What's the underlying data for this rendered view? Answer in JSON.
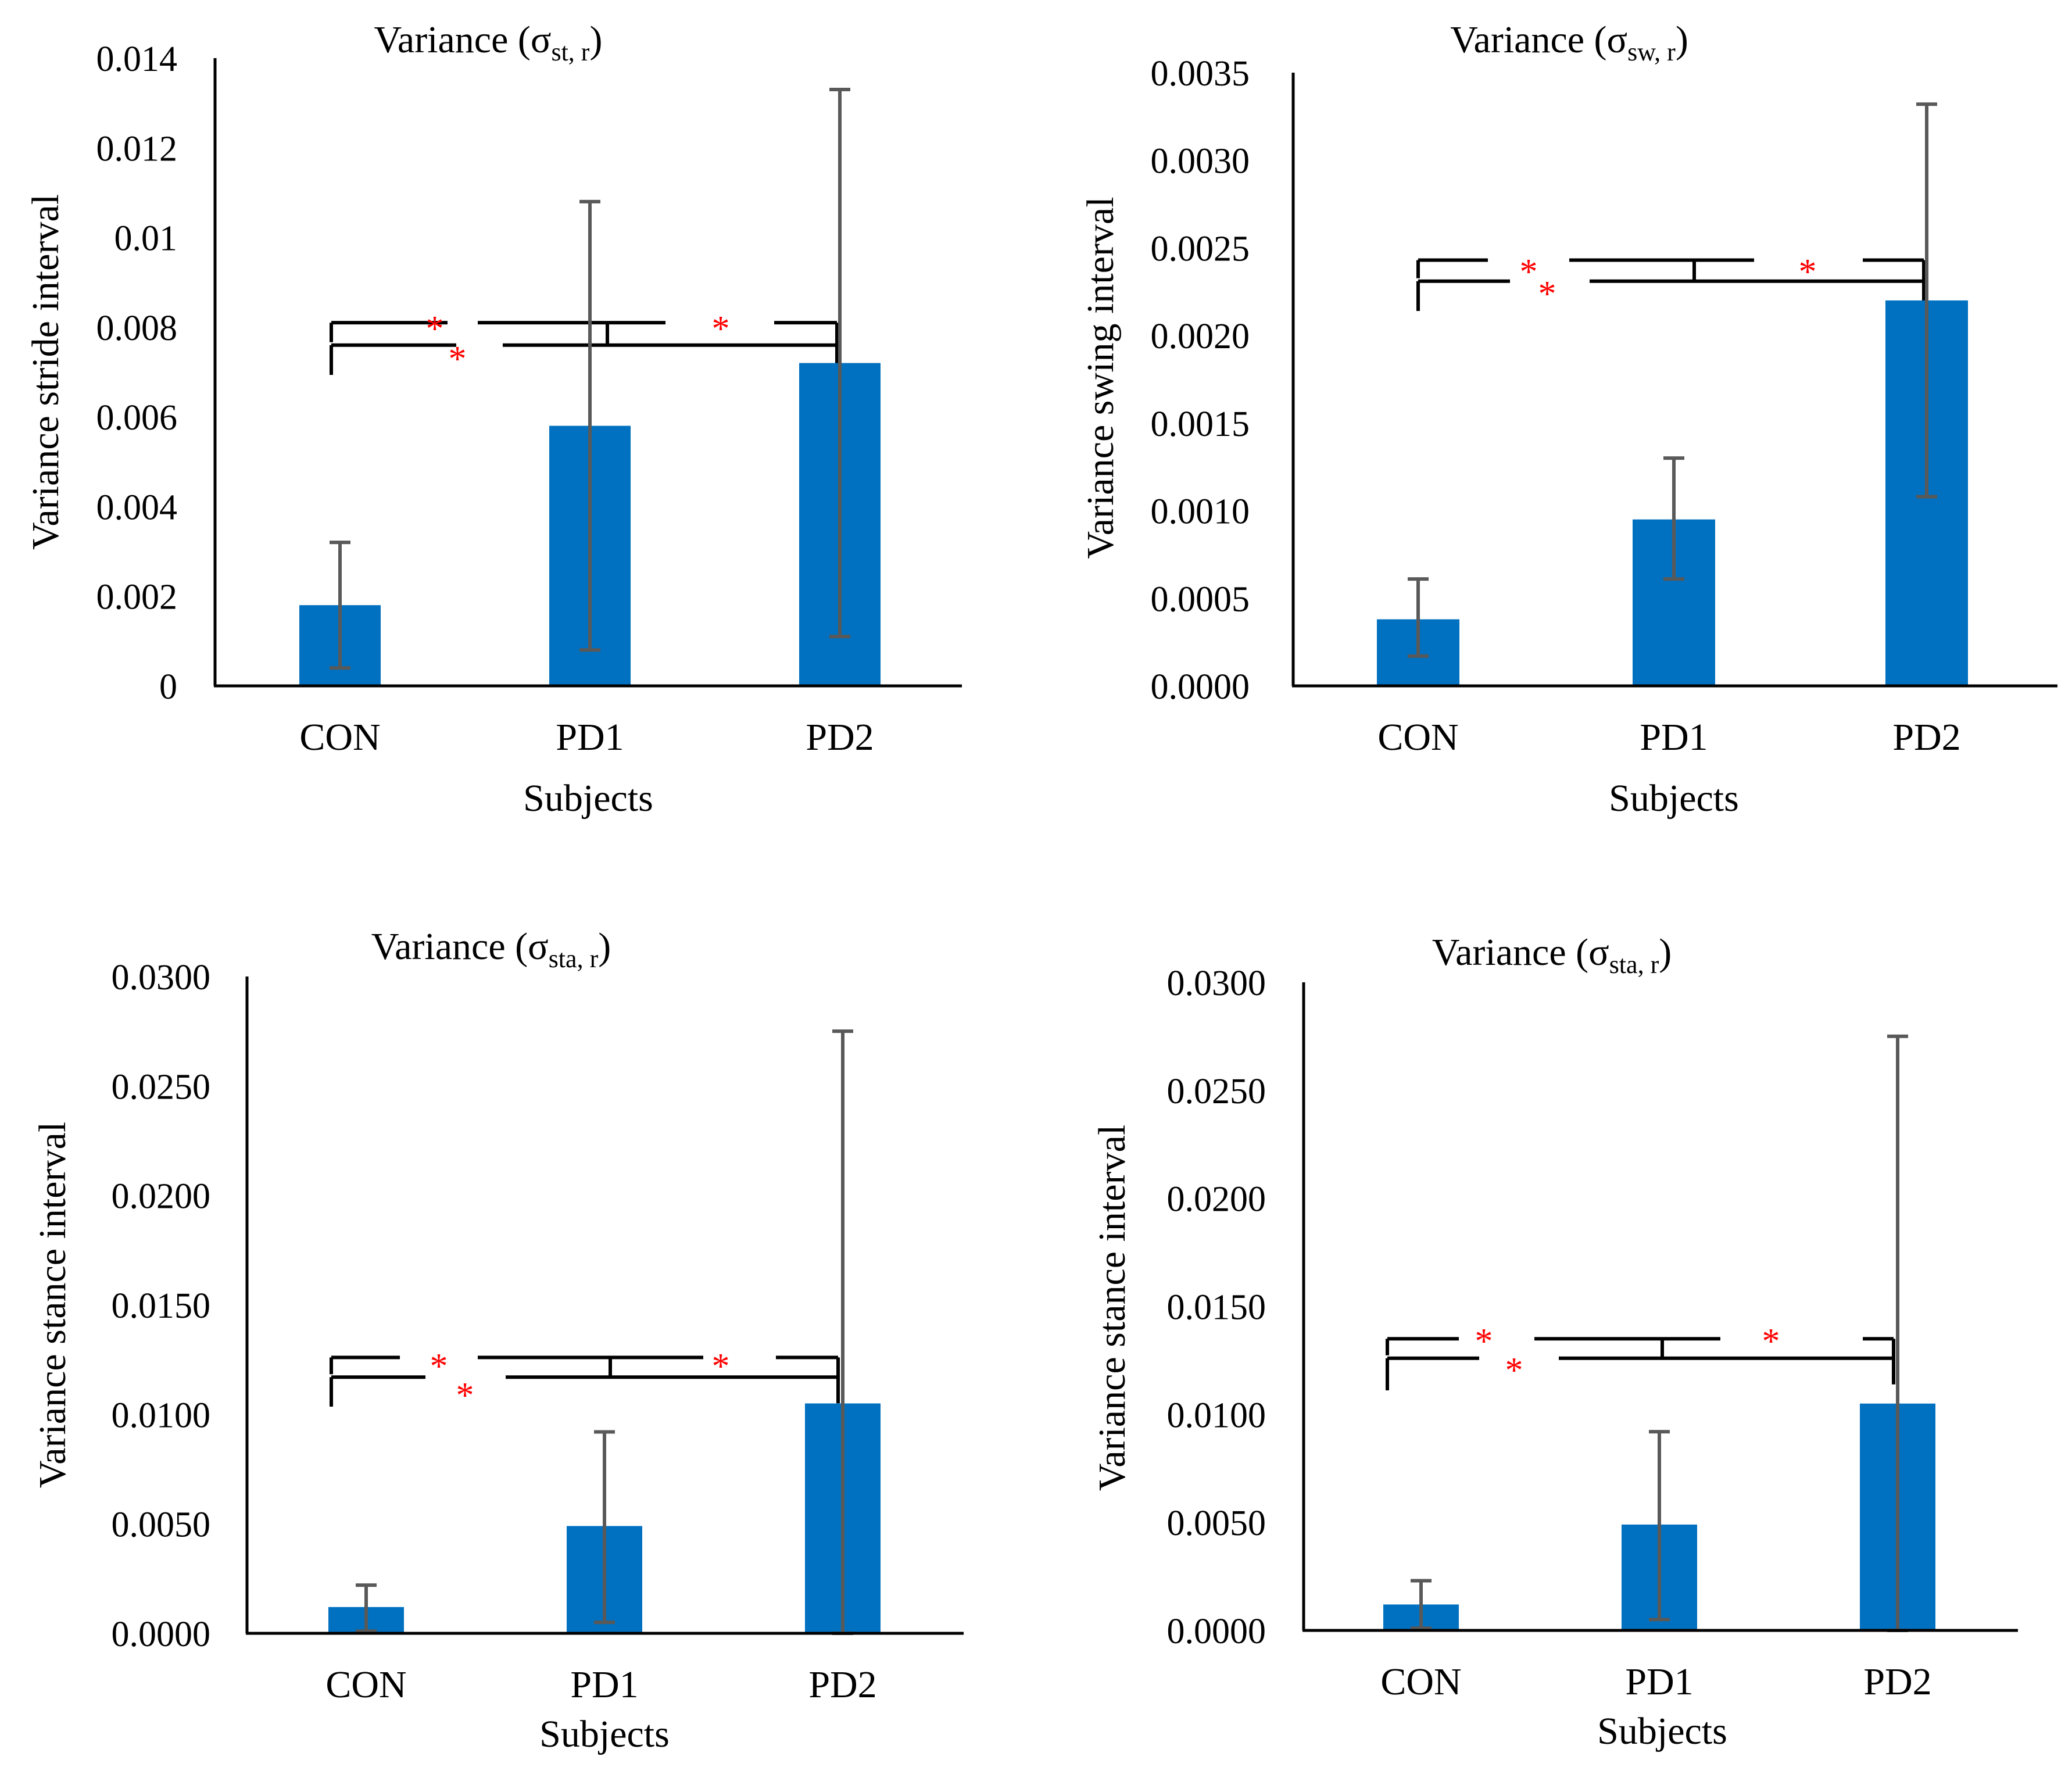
{
  "figure": {
    "colors": {
      "bar": "#0070C0",
      "error_bar": "#595959",
      "axis": "#000000",
      "significance": "#FF0000",
      "bracket": "#000000"
    }
  },
  "chart_data": [
    {
      "type": "bar",
      "title_main": "Variance (σ",
      "title_sub": "st, r",
      "title_close": ")",
      "xlabel": "Subjects",
      "ylabel": "Variance stride interval",
      "categories": [
        "CON",
        "PD1",
        "PD2"
      ],
      "values": [
        0.0018,
        0.0058,
        0.0072
      ],
      "error_low": [
        0.0004,
        0.0008,
        0.0011
      ],
      "error_high": [
        0.0032,
        0.0108,
        0.0133
      ],
      "ylim": [
        0,
        0.014
      ],
      "yticks": [
        "0",
        "0.002",
        "0.004",
        "0.006",
        "0.008",
        "0.01",
        "0.012",
        "0.014"
      ],
      "significance": {
        "upper_level": 0.0081,
        "lower_level": 0.0076,
        "marker": "*",
        "comparisons": [
          "CON vs PD1",
          "PD1 vs PD2",
          "CON vs PD2"
        ]
      }
    },
    {
      "type": "bar",
      "title_main": "Variance (σ",
      "title_sub": "sw, r",
      "title_close": ")",
      "xlabel": "Subjects",
      "ylabel": "Variance swing interval",
      "categories": [
        "CON",
        "PD1",
        "PD2"
      ],
      "values": [
        0.00038,
        0.00095,
        0.0022
      ],
      "error_low": [
        0.00017,
        0.00061,
        0.00108
      ],
      "error_high": [
        0.00061,
        0.0013,
        0.00332
      ],
      "ylim": [
        0,
        0.0035
      ],
      "yticks": [
        "0.0000",
        "0.0005",
        "0.0010",
        "0.0015",
        "0.0020",
        "0.0025",
        "0.0030",
        "0.0035"
      ],
      "significance": {
        "upper_level": 0.00243,
        "lower_level": 0.00231,
        "marker": "*",
        "comparisons": [
          "CON vs PD1",
          "PD1 vs PD2",
          "CON vs PD2"
        ]
      }
    },
    {
      "type": "bar",
      "title_main": "Variance (σ",
      "title_sub": "sta, r",
      "title_close": ")",
      "xlabel": "Subjects",
      "ylabel": "Variance stance interval",
      "categories": [
        "CON",
        "PD1",
        "PD2"
      ],
      "values": [
        0.0012,
        0.0049,
        0.0105
      ],
      "error_low": [
        0.0001,
        0.0005,
        0.0
      ],
      "error_high": [
        0.0022,
        0.0092,
        0.0275
      ],
      "ylim": [
        0,
        0.03
      ],
      "yticks": [
        "0.0000",
        "0.0050",
        "0.0100",
        "0.0150",
        "0.0200",
        "0.0250",
        "0.0300"
      ],
      "significance": {
        "upper_level": 0.0126,
        "lower_level": 0.0117,
        "marker": "*",
        "comparisons": [
          "CON vs PD1",
          "PD1 vs PD2",
          "CON vs PD2"
        ]
      }
    },
    {
      "type": "bar",
      "title_main": "Variance (σ",
      "title_sub": "sta, r",
      "title_close": ")",
      "xlabel": "Subjects",
      "ylabel": "Variance stance interval",
      "categories": [
        "CON",
        "PD1",
        "PD2"
      ],
      "values": [
        0.0012,
        0.0049,
        0.0105
      ],
      "error_low": [
        0.0001,
        0.0005,
        0.0
      ],
      "error_high": [
        0.0023,
        0.0092,
        0.0275
      ],
      "ylim": [
        0,
        0.03
      ],
      "yticks": [
        "0.0000",
        "0.0050",
        "0.0100",
        "0.0150",
        "0.0200",
        "0.0250",
        "0.0300"
      ],
      "significance": {
        "upper_level": 0.0135,
        "lower_level": 0.0126,
        "marker": "*",
        "comparisons": [
          "CON vs PD1",
          "PD1 vs PD2",
          "CON vs PD2"
        ]
      }
    }
  ]
}
